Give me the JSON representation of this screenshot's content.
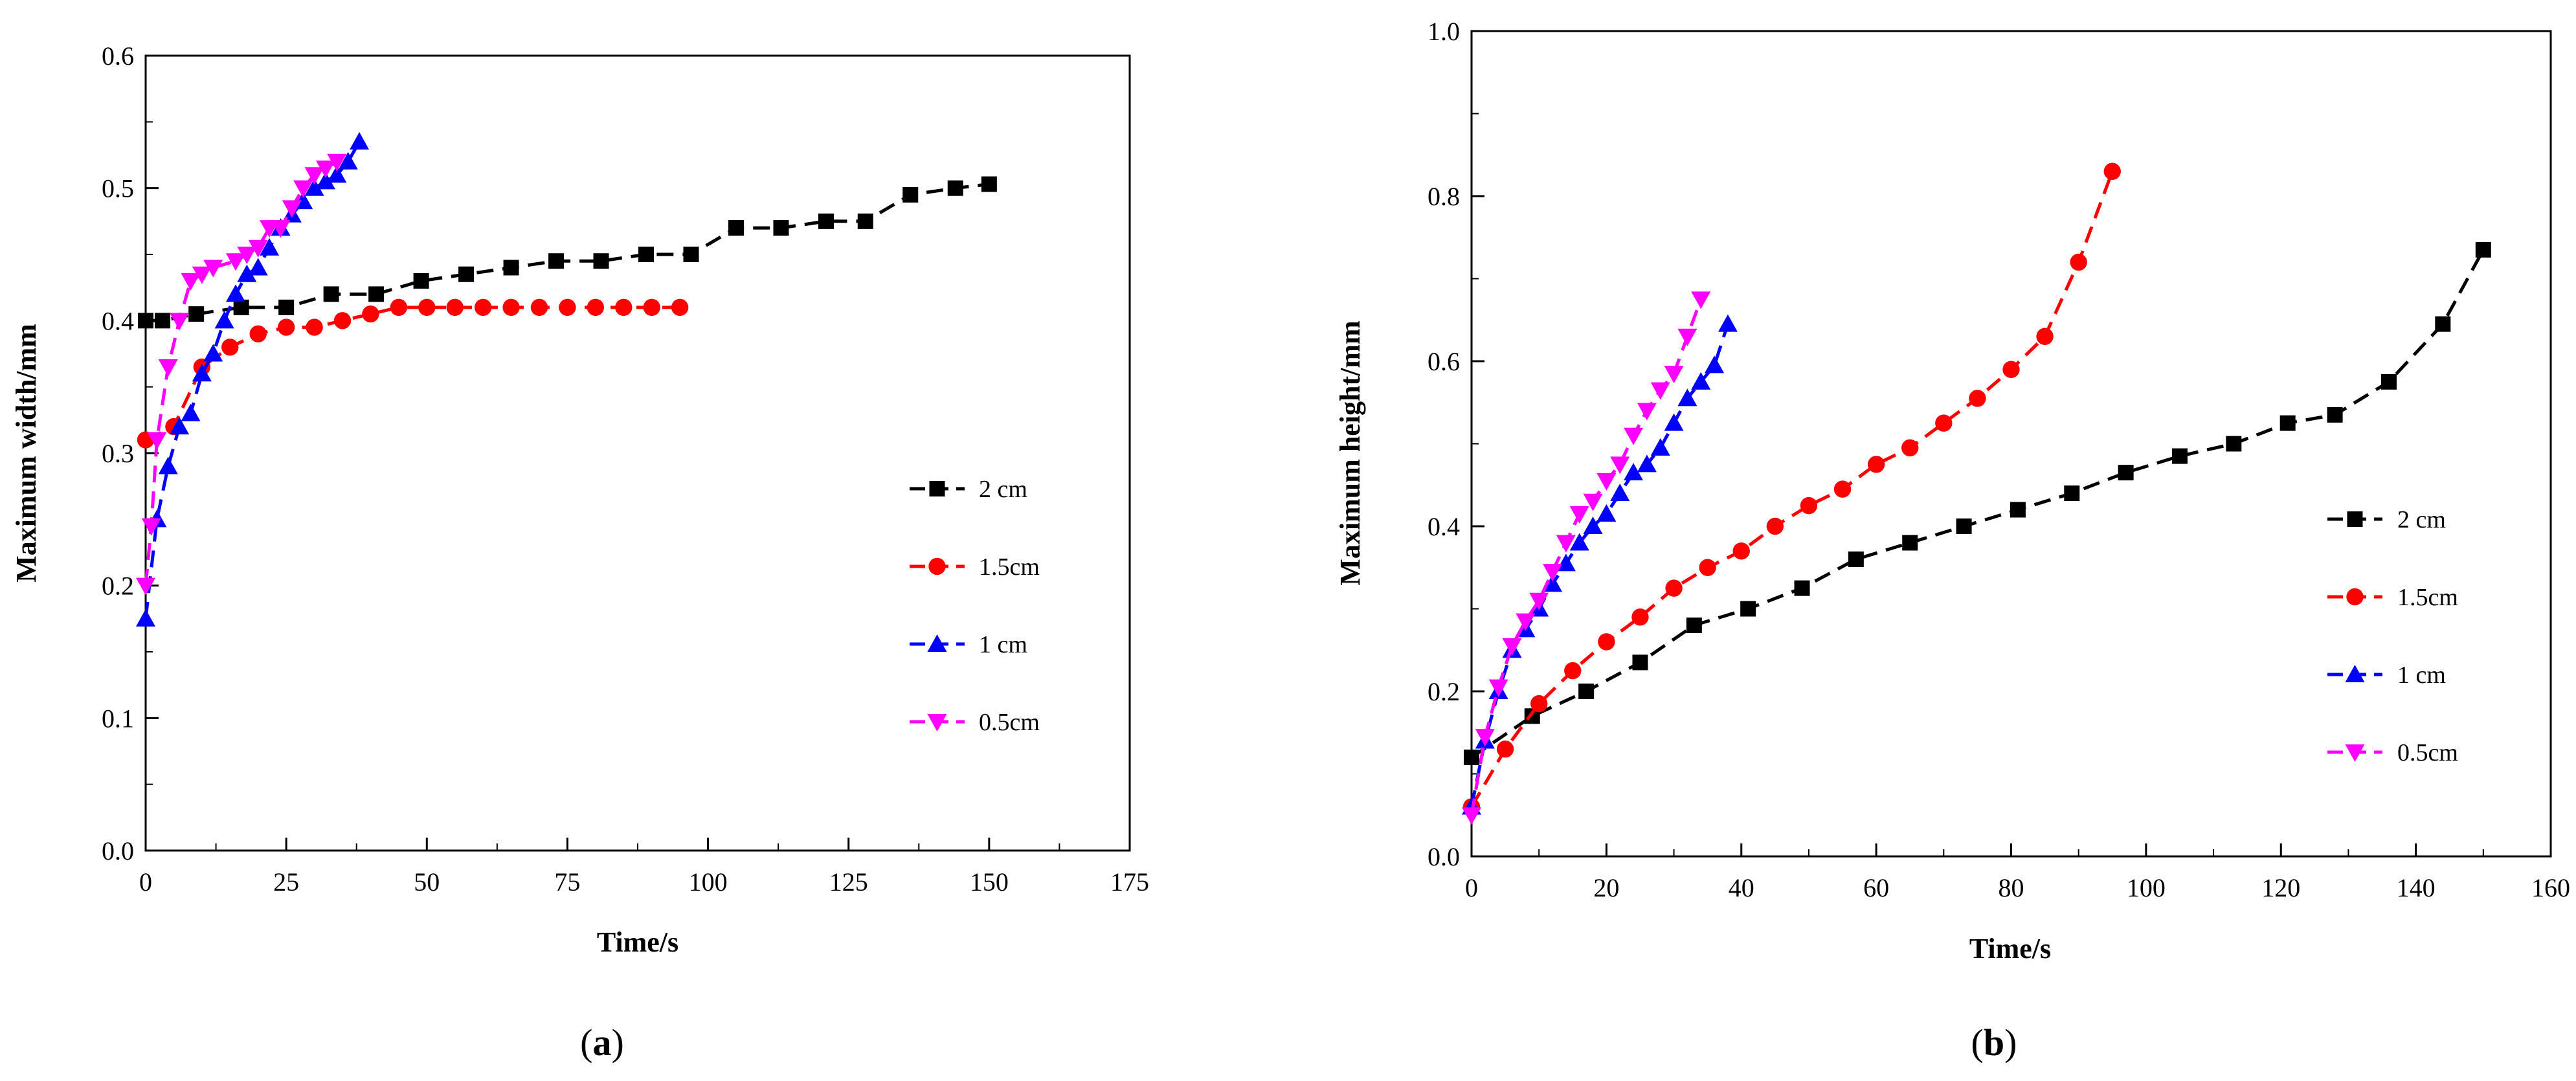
{
  "chart_data": [
    {
      "type": "line",
      "panel_label": {
        "open": "(",
        "letter": "a",
        "close": ")"
      },
      "title": "",
      "xlabel": "Time/s",
      "ylabel": "Maximum width/mm",
      "xlim": [
        0,
        175
      ],
      "ylim": [
        0,
        0.6
      ],
      "xticks": [
        "0",
        "25",
        "50",
        "75",
        "100",
        "125",
        "150",
        "175"
      ],
      "yticks": [
        "0.0",
        "0.1",
        "0.2",
        "0.3",
        "0.4",
        "0.5",
        "0.6"
      ],
      "grid": false,
      "legend_position": "right",
      "series": [
        {
          "name": "2 cm",
          "color": "#000000",
          "marker": "square",
          "x": [
            0,
            3,
            9,
            17,
            25,
            33,
            41,
            49,
            57,
            65,
            73,
            81,
            89,
            97,
            105,
            113,
            121,
            128,
            136,
            144,
            150
          ],
          "y": [
            0.4,
            0.4,
            0.405,
            0.41,
            0.41,
            0.42,
            0.42,
            0.43,
            0.435,
            0.44,
            0.445,
            0.445,
            0.45,
            0.45,
            0.47,
            0.47,
            0.475,
            0.475,
            0.495,
            0.5,
            0.503
          ]
        },
        {
          "name": "1.5cm",
          "color": "#ff0000",
          "marker": "circle",
          "x": [
            0,
            5,
            10,
            15,
            20,
            25,
            30,
            35,
            40,
            45,
            50,
            55,
            60,
            65,
            70,
            75,
            80,
            85,
            90,
            95
          ],
          "y": [
            0.31,
            0.32,
            0.365,
            0.38,
            0.39,
            0.395,
            0.395,
            0.4,
            0.405,
            0.41,
            0.41,
            0.41,
            0.41,
            0.41,
            0.41,
            0.41,
            0.41,
            0.41,
            0.41,
            0.41
          ]
        },
        {
          "name": "1 cm",
          "color": "#0000ff",
          "marker": "triangle-up",
          "x": [
            0,
            2,
            4,
            6,
            8,
            10,
            12,
            14,
            16,
            18,
            20,
            22,
            24,
            26,
            28,
            30,
            32,
            34,
            36,
            38
          ],
          "y": [
            0.175,
            0.25,
            0.29,
            0.32,
            0.33,
            0.36,
            0.375,
            0.4,
            0.42,
            0.435,
            0.44,
            0.455,
            0.47,
            0.48,
            0.49,
            0.5,
            0.505,
            0.51,
            0.52,
            0.535
          ]
        },
        {
          "name": "0.5cm",
          "color": "#ff00ff",
          "marker": "triangle-down",
          "x": [
            0,
            1,
            2,
            4,
            6,
            8,
            10,
            12,
            16,
            18,
            20,
            22,
            24,
            26,
            28,
            30,
            32,
            34
          ],
          "y": [
            0.2,
            0.245,
            0.31,
            0.365,
            0.4,
            0.43,
            0.435,
            0.44,
            0.445,
            0.45,
            0.455,
            0.47,
            0.47,
            0.485,
            0.5,
            0.51,
            0.515,
            0.52
          ]
        }
      ]
    },
    {
      "type": "line",
      "panel_label": {
        "open": "(",
        "letter": "b",
        "close": ")"
      },
      "title": "",
      "xlabel": "Time/s",
      "ylabel": "Maximum height/mm",
      "xlim": [
        0,
        160
      ],
      "ylim": [
        0,
        1.0
      ],
      "xticks": [
        "0",
        "20",
        "40",
        "60",
        "80",
        "100",
        "120",
        "140",
        "160"
      ],
      "yticks": [
        "0.0",
        "0.2",
        "0.4",
        "0.6",
        "0.8",
        "1.0"
      ],
      "grid": false,
      "legend_position": "right",
      "series": [
        {
          "name": "2 cm",
          "color": "#000000",
          "marker": "square",
          "x": [
            0,
            9,
            17,
            25,
            33,
            41,
            49,
            57,
            65,
            73,
            81,
            89,
            97,
            105,
            113,
            121,
            128,
            136,
            144,
            150
          ],
          "y": [
            0.12,
            0.17,
            0.2,
            0.235,
            0.28,
            0.3,
            0.325,
            0.36,
            0.38,
            0.4,
            0.42,
            0.44,
            0.465,
            0.485,
            0.5,
            0.525,
            0.535,
            0.575,
            0.645,
            0.735
          ]
        },
        {
          "name": "1.5cm",
          "color": "#ff0000",
          "marker": "circle",
          "x": [
            0,
            5,
            10,
            15,
            20,
            25,
            30,
            35,
            40,
            45,
            50,
            55,
            60,
            65,
            70,
            75,
            80,
            85,
            90,
            95
          ],
          "y": [
            0.06,
            0.13,
            0.185,
            0.225,
            0.26,
            0.29,
            0.325,
            0.35,
            0.37,
            0.4,
            0.425,
            0.445,
            0.475,
            0.495,
            0.525,
            0.555,
            0.59,
            0.63,
            0.72,
            0.83
          ]
        },
        {
          "name": "1 cm",
          "color": "#0000ff",
          "marker": "triangle-up",
          "x": [
            0,
            2,
            4,
            6,
            8,
            10,
            12,
            14,
            16,
            18,
            20,
            22,
            24,
            26,
            28,
            30,
            32,
            34,
            36,
            38
          ],
          "y": [
            0.06,
            0.14,
            0.2,
            0.25,
            0.275,
            0.3,
            0.33,
            0.355,
            0.38,
            0.4,
            0.415,
            0.44,
            0.465,
            0.475,
            0.495,
            0.525,
            0.555,
            0.575,
            0.595,
            0.645
          ]
        },
        {
          "name": "0.5cm",
          "color": "#ff00ff",
          "marker": "triangle-down",
          "x": [
            0,
            2,
            4,
            6,
            8,
            10,
            12,
            14,
            16,
            18,
            20,
            22,
            24,
            26,
            28,
            30,
            32,
            34
          ],
          "y": [
            0.05,
            0.145,
            0.205,
            0.255,
            0.285,
            0.31,
            0.345,
            0.38,
            0.415,
            0.43,
            0.455,
            0.475,
            0.51,
            0.54,
            0.565,
            0.585,
            0.63,
            0.675
          ]
        }
      ]
    }
  ]
}
